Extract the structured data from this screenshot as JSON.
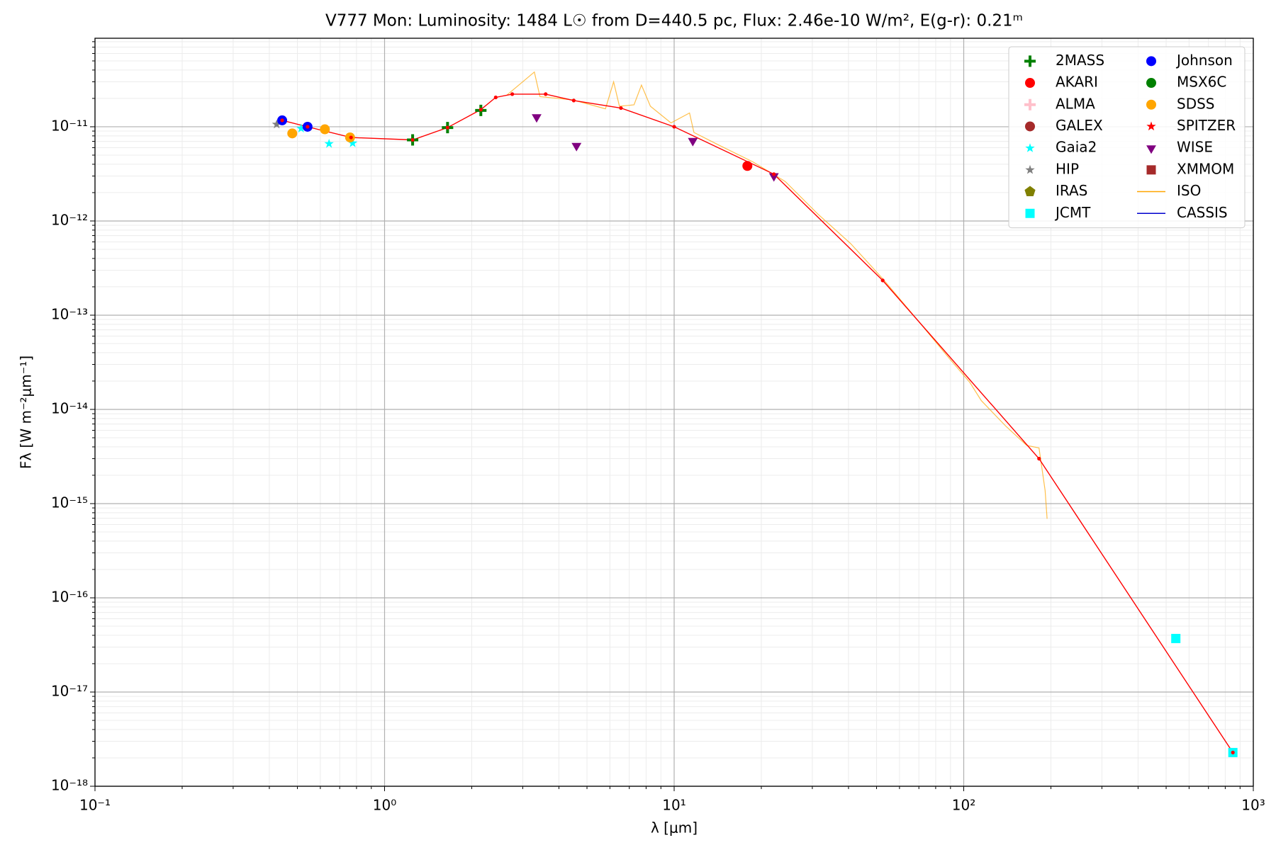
{
  "chart_data": {
    "type": "scatter",
    "title": "V777 Mon:  Luminosity: 1484 L☉ from D=440.5 pc, Flux: 2.46e-10 W/m², E(g-r): 0.21ᵐ",
    "x_label": "λ [μm]",
    "y_label": "Fλ [W m⁻²μm⁻¹]",
    "xscale": "log",
    "yscale": "log",
    "grid": true,
    "legend": "upper right",
    "legend_columns": 2,
    "xlim": [
      0.1,
      1000
    ],
    "ylim": [
      1e-18,
      8.7e-11
    ],
    "xticks": [
      {
        "value": 0.1,
        "label": "10⁻¹"
      },
      {
        "value": 1,
        "label": "10⁰"
      },
      {
        "value": 10,
        "label": "10¹"
      },
      {
        "value": 100,
        "label": "10²"
      },
      {
        "value": 1000,
        "label": "10³"
      }
    ],
    "yticks": [
      {
        "value": 1e-18,
        "label": "10⁻¹⁸"
      },
      {
        "value": 1e-17,
        "label": "10⁻¹⁷"
      },
      {
        "value": 1e-16,
        "label": "10⁻¹⁶"
      },
      {
        "value": 1e-15,
        "label": "10⁻¹⁵"
      },
      {
        "value": 1e-14,
        "label": "10⁻¹⁴"
      },
      {
        "value": 1e-13,
        "label": "10⁻¹³"
      },
      {
        "value": 1e-12,
        "label": "10⁻¹²"
      },
      {
        "value": 1e-11,
        "label": "10⁻¹¹"
      }
    ],
    "xminorticks": [
      0.2,
      0.3,
      0.4,
      0.5,
      0.6,
      0.7,
      0.8,
      0.9,
      2,
      3,
      4,
      5,
      6,
      7,
      8,
      9,
      20,
      30,
      40,
      50,
      60,
      70,
      80,
      90,
      200,
      300,
      400,
      500,
      600,
      700,
      800,
      900
    ],
    "yminorticks": [
      2e-18,
      3e-18,
      4e-18,
      5e-18,
      6e-18,
      7e-18,
      8e-18,
      9e-18,
      2e-17,
      3e-17,
      4e-17,
      5e-17,
      6e-17,
      7e-17,
      8e-17,
      9e-17,
      2e-16,
      3e-16,
      4e-16,
      5e-16,
      6e-16,
      7e-16,
      8e-16,
      9e-16,
      2e-15,
      3e-15,
      4e-15,
      5e-15,
      6e-15,
      7e-15,
      8e-15,
      9e-15,
      2e-14,
      3e-14,
      4e-14,
      5e-14,
      6e-14,
      7e-14,
      8e-14,
      9e-14,
      2e-13,
      3e-13,
      4e-13,
      5e-13,
      6e-13,
      7e-13,
      8e-13,
      9e-13,
      2e-12,
      3e-12,
      4e-12,
      5e-12,
      6e-12,
      7e-12,
      8e-12,
      9e-12,
      2e-11,
      3e-11,
      4e-11,
      5e-11,
      6e-11,
      7e-11,
      8e-11
    ],
    "series": [
      {
        "name": "2MASS",
        "color": "#008000",
        "marker": "plus",
        "x": [
          1.25,
          1.65,
          2.15
        ],
        "values": [
          7.26e-12,
          9.8e-12,
          1.49e-11
        ]
      },
      {
        "name": "AKARI",
        "color": "#ff0000",
        "marker": "circle",
        "x": [
          17.9
        ],
        "values": [
          3.84e-12
        ]
      },
      {
        "name": "ALMA",
        "color": "#ffc0cb",
        "marker": "plus",
        "x": [],
        "values": []
      },
      {
        "name": "GALEX",
        "color": "#a52a2a",
        "marker": "circle",
        "x": [],
        "values": []
      },
      {
        "name": "Gaia2",
        "color": "#00ffff",
        "marker": "star",
        "x": [
          0.515,
          0.643,
          0.776
        ],
        "values": [
          9.6e-12,
          6.6e-12,
          6.7e-12
        ]
      },
      {
        "name": "HIP",
        "color": "#808080",
        "marker": "star",
        "x": [
          0.424
        ],
        "values": [
          1.06e-11
        ]
      },
      {
        "name": "IRAS",
        "color": "#808000",
        "marker": "pentagon",
        "x": [],
        "values": []
      },
      {
        "name": "JCMT",
        "color": "#00ffff",
        "marker": "square",
        "x": [
          540,
          850
        ],
        "values": [
          3.7e-17,
          2.28e-18
        ]
      },
      {
        "name": "Johnson",
        "color": "#0000ff",
        "marker": "circle",
        "x": [
          0.443,
          0.542
        ],
        "values": [
          1.17e-11,
          1e-11
        ]
      },
      {
        "name": "MSX6C",
        "color": "#008000",
        "marker": "circle",
        "x": [],
        "values": []
      },
      {
        "name": "SDSS",
        "color": "#ffa500",
        "marker": "circle",
        "x": [
          0.48,
          0.622,
          0.76
        ],
        "values": [
          8.5e-12,
          9.4e-12,
          7.7e-12
        ]
      },
      {
        "name": "SPITZER",
        "color": "#ff0000",
        "marker": "star",
        "x": [],
        "values": []
      },
      {
        "name": "WISE",
        "color": "#800080",
        "marker": "triangle",
        "x": [
          3.35,
          4.6,
          11.6,
          22.1
        ],
        "values": [
          1.27e-11,
          6.3e-12,
          7.1e-12,
          3e-12
        ]
      },
      {
        "name": "XMMOM",
        "color": "#a52a2a",
        "marker": "square",
        "x": [],
        "values": []
      },
      {
        "name": "ISO",
        "color": "#ffa500",
        "marker": "line",
        "x": [
          2.65,
          3.29,
          3.44,
          4.46,
          5.79,
          6.18,
          6.47,
          7.27,
          7.71,
          8.28,
          9.75,
          11.3,
          11.7,
          14.4,
          18.7,
          24.2,
          31.4,
          40.7,
          52.8,
          68.6,
          89.0,
          105,
          115,
          140,
          165,
          182,
          191,
          194
        ],
        "values": [
          2.18e-11,
          3.81e-11,
          2.09e-11,
          1.93e-11,
          1.55e-11,
          3e-11,
          1.65e-11,
          1.71e-11,
          2.77e-11,
          1.65e-11,
          1.1e-11,
          1.4e-11,
          8.7e-12,
          6.3e-12,
          4.24e-12,
          2.62e-12,
          1.18e-12,
          5.75e-13,
          2.39e-13,
          9.2e-14,
          3.5e-14,
          1.93e-14,
          1.24e-14,
          6.6e-15,
          4.15e-15,
          3.9e-15,
          1.38e-15,
          6.9e-16
        ]
      },
      {
        "name": "CASSIS",
        "color": "#0000cd",
        "marker": "line",
        "x": [],
        "values": []
      },
      {
        "color": "#ff0000",
        "marker": "dotline",
        "x": [
          0.443,
          0.542,
          0.766,
          1.25,
          1.65,
          2.15,
          2.42,
          2.76,
          3.6,
          4.5,
          6.55,
          10.0,
          22.1,
          52.5,
          182,
          850
        ],
        "values": [
          1.17e-11,
          1e-11,
          7.7e-12,
          7.26e-12,
          9.8e-12,
          1.52e-11,
          2.05e-11,
          2.22e-11,
          2.22e-11,
          1.9e-11,
          1.58e-11,
          1e-11,
          3.14e-12,
          2.34e-13,
          3e-15,
          2.28e-18
        ]
      }
    ]
  }
}
